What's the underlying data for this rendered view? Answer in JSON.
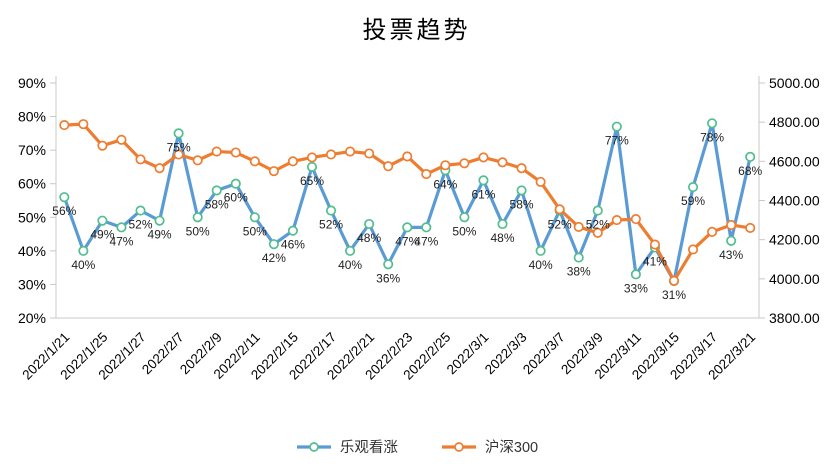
{
  "title": "投票趋势",
  "chart_data": {
    "type": "line",
    "title": "投票趋势",
    "grid": false,
    "legend_position": "bottom",
    "x_labels": [
      "2022/1/21",
      "2022/1/25",
      "2022/1/27",
      "2022/2/7",
      "2022/2/9",
      "2022/2/11",
      "2022/2/15",
      "2022/2/17",
      "2022/2/21",
      "2022/2/23",
      "2022/2/25",
      "2022/3/1",
      "2022/3/3",
      "2022/3/7",
      "2022/3/9",
      "2022/3/11",
      "2022/3/15",
      "2022/3/17",
      "2022/3/21"
    ],
    "x_label_every": 2,
    "point_count": 37,
    "left_axis": {
      "min": 20,
      "max": 90,
      "step": 10,
      "tick_labels": [
        "90%",
        "80%",
        "70%",
        "60%",
        "50%",
        "40%",
        "30%",
        "20%"
      ]
    },
    "right_axis": {
      "min": 3800,
      "max": 5000,
      "step": 200,
      "tick_labels": [
        "5000.00",
        "4800.00",
        "4600.00",
        "4400.00",
        "4200.00",
        "4000.00",
        "3800.00"
      ]
    },
    "series": [
      {
        "name": "乐观看涨",
        "axis": "left",
        "color": "#5B9BD5",
        "marker_stroke": "#52BE8E",
        "marker_fill": "#ffffff",
        "values": [
          56,
          40,
          49,
          47,
          52,
          49,
          75,
          50,
          58,
          60,
          50,
          42,
          46,
          65,
          52,
          40,
          48,
          36,
          47,
          47,
          64,
          50,
          61,
          48,
          58,
          40,
          52,
          38,
          52,
          77,
          33,
          41,
          31,
          59,
          78,
          43,
          68
        ],
        "data_labels": [
          "56%",
          "40%",
          "49%",
          "47%",
          "52%",
          "49%",
          "75%",
          "50%",
          "58%",
          "60%",
          "50%",
          "42%",
          "46%",
          "65%",
          "52%",
          "40%",
          "48%",
          "36%",
          "47%",
          "47%",
          "64%",
          "50%",
          "61%",
          "48%",
          "58%",
          "40%",
          "52%",
          "38%",
          "52%",
          "77%",
          "33%",
          "41%",
          "31%",
          "59%",
          "78%",
          "43%",
          "68%"
        ]
      },
      {
        "name": "沪深300",
        "axis": "right",
        "color": "#ED7D31",
        "marker_stroke": "#ED7D31",
        "marker_fill": "#ffffff",
        "values": [
          4785,
          4790,
          4680,
          4710,
          4610,
          4565,
          4635,
          4605,
          4650,
          4645,
          4600,
          4550,
          4600,
          4620,
          4635,
          4650,
          4640,
          4575,
          4625,
          4535,
          4580,
          4590,
          4620,
          4595,
          4565,
          4495,
          4355,
          4265,
          4235,
          4300,
          4305,
          4175,
          3990,
          4150,
          4240,
          4275,
          4260
        ],
        "data_labels": []
      }
    ],
    "axis_color": "#C9C9C9",
    "label_color": "#1f1f1f"
  }
}
